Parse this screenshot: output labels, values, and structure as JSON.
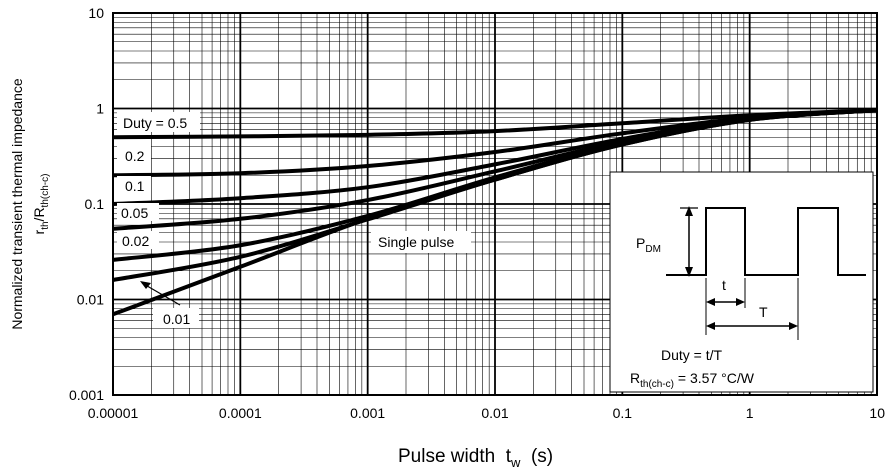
{
  "chart_data": {
    "type": "line",
    "xscale": "log",
    "yscale": "log",
    "xlim": [
      1e-05,
      10
    ],
    "ylim": [
      0.001,
      10
    ],
    "grid": true,
    "x_ticks": [
      "0.00001",
      "0.0001",
      "0.001",
      "0.01",
      "0.1",
      "1",
      "10"
    ],
    "y_ticks": [
      "0.001",
      "0.01",
      "0.1",
      "1",
      "10"
    ],
    "xlabel": {
      "main": "Pulse width  t",
      "sub": "w",
      "unit": "  (s)"
    },
    "ylabel_line1": "Normalized transient thermal impedance",
    "ylabel_line2": {
      "a": "r",
      "a_sub": "th",
      "b": "/R",
      "b_sub": "th(ch-c)"
    },
    "series": [
      {
        "name": "Duty = 0.5",
        "x": [
          1e-05,
          0.0001,
          0.001,
          0.01,
          0.1,
          1,
          10
        ],
        "y": [
          0.5,
          0.51,
          0.53,
          0.58,
          0.7,
          0.85,
          0.96
        ]
      },
      {
        "name": "0.2",
        "x": [
          1e-05,
          0.0001,
          0.001,
          0.01,
          0.1,
          1,
          10
        ],
        "y": [
          0.2,
          0.21,
          0.25,
          0.35,
          0.55,
          0.8,
          0.96
        ]
      },
      {
        "name": "0.1",
        "x": [
          1e-05,
          0.0001,
          0.001,
          0.01,
          0.1,
          1,
          10
        ],
        "y": [
          0.1,
          0.115,
          0.15,
          0.26,
          0.48,
          0.78,
          0.96
        ]
      },
      {
        "name": "0.05",
        "x": [
          1e-05,
          0.0001,
          0.001,
          0.01,
          0.1,
          1,
          10
        ],
        "y": [
          0.055,
          0.07,
          0.11,
          0.22,
          0.45,
          0.77,
          0.96
        ]
      },
      {
        "name": "0.02",
        "x": [
          1e-05,
          0.0001,
          0.001,
          0.01,
          0.1,
          1,
          10
        ],
        "y": [
          0.026,
          0.037,
          0.075,
          0.19,
          0.43,
          0.77,
          0.96
        ]
      },
      {
        "name": "0.01",
        "x": [
          1e-05,
          0.0001,
          0.001,
          0.01,
          0.1,
          1,
          10
        ],
        "y": [
          0.016,
          0.028,
          0.069,
          0.18,
          0.42,
          0.76,
          0.96
        ]
      },
      {
        "name": "Single pulse",
        "x": [
          1e-05,
          0.0001,
          0.001,
          0.01,
          0.1,
          1,
          10
        ],
        "y": [
          0.007,
          0.022,
          0.07,
          0.18,
          0.42,
          0.76,
          0.96
        ]
      }
    ],
    "labels": {
      "duty05": "Duty = 0.5",
      "d02": "0.2",
      "d01": "0.1",
      "d005": "0.05",
      "d002": "0.02",
      "d001": "0.01",
      "single": "Single pulse"
    },
    "inset": {
      "pdm": {
        "main": "P",
        "sub": "DM"
      },
      "t": "t",
      "T": "T",
      "duty": "Duty = t/T",
      "rth": {
        "main": "R",
        "sub": "th(ch-c)",
        "rest": " = 3.57 °C/W"
      }
    }
  }
}
